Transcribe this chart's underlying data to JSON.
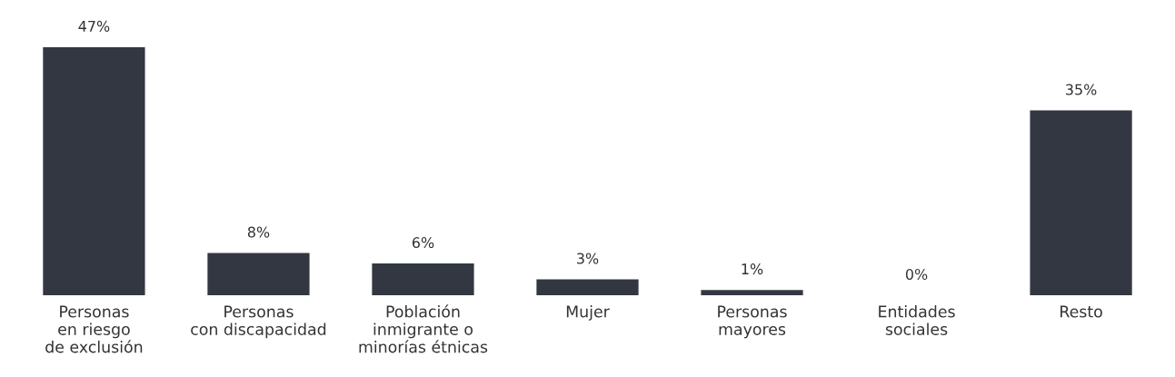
{
  "chart_data": {
    "type": "bar",
    "categories": [
      "Personas\nen riesgo\nde exclusión",
      "Personas\ncon discapacidad",
      "Población\ninmigrante o\nminorías étnicas",
      "Mujer",
      "Personas\nmayores",
      "Entidades\nsociales",
      "Resto"
    ],
    "values": [
      47,
      8,
      6,
      3,
      1,
      0,
      35
    ],
    "value_labels": [
      "47%",
      "8%",
      "6%",
      "3%",
      "1%",
      "0%",
      "35%"
    ],
    "color": "#333742",
    "grid": false,
    "legend": false
  }
}
